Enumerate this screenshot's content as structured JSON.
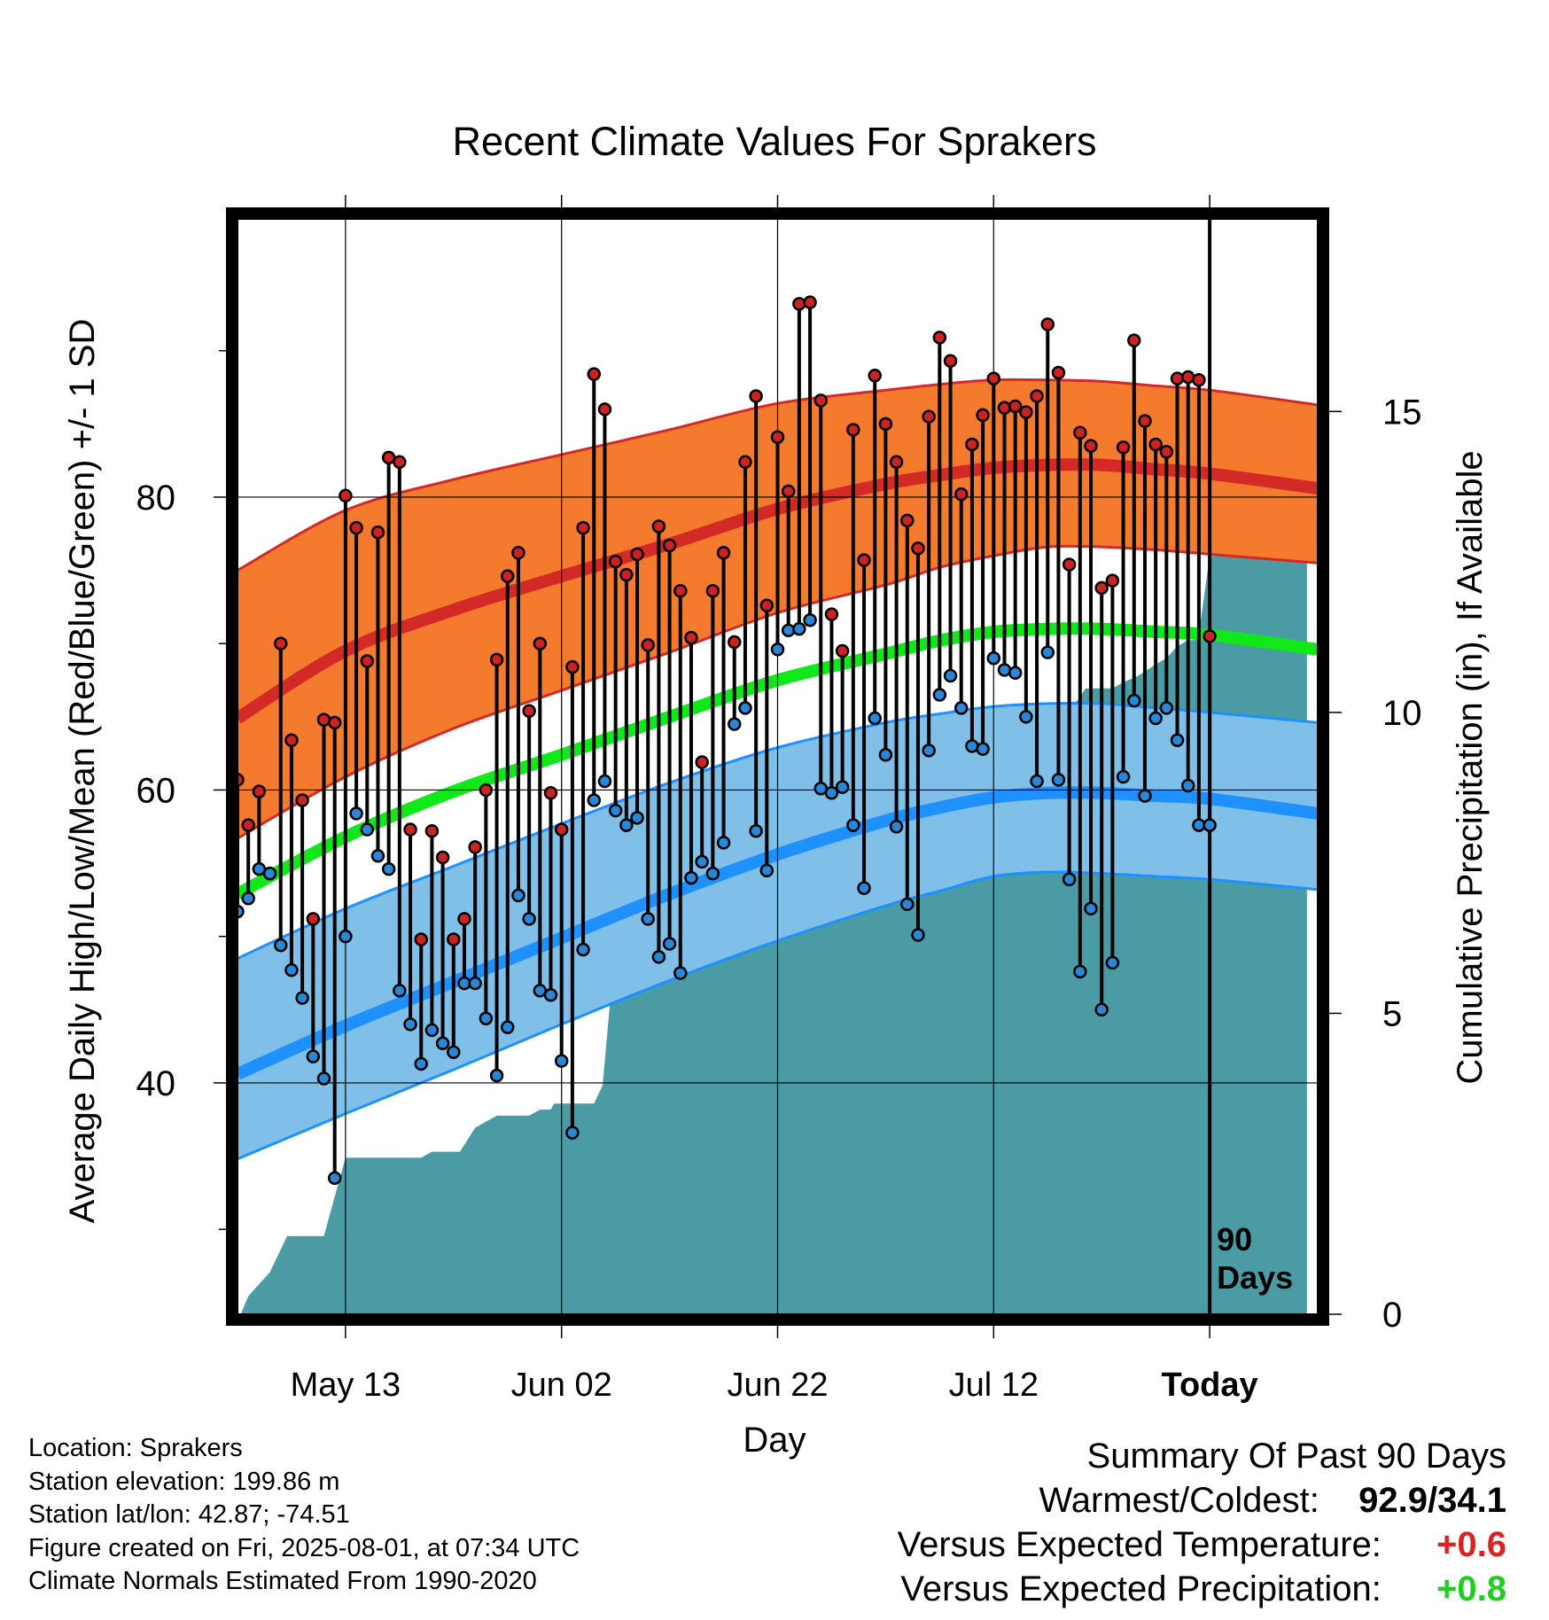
{
  "colors": {
    "high_band": "#f47a2e",
    "high_line": "#d42a27",
    "low_band": "#7fbfe8",
    "low_line": "#1e90ff",
    "mean_line": "#11e81a",
    "precip_fill": "#4a9ba3",
    "high_point": "#cc2222",
    "low_point": "#2a86d6",
    "positive_temp": "#dd2222",
    "positive_precip": "#22cc22"
  },
  "chart_data": {
    "type": "line",
    "title": "Recent Climate Values For Sprakers",
    "xlabel": "Day",
    "ylabel": "Average Daily High/Low/Mean (Red/Blue/Green) +/- 1 SD",
    "y2label": "Cumulative Precipitation (in), If Available",
    "xlim": [
      0,
      100
    ],
    "ylim": [
      24.2,
      99.0
    ],
    "y2lim": [
      0,
      18.2
    ],
    "xticks": [
      {
        "x": 10,
        "label": "May 13"
      },
      {
        "x": 30,
        "label": "Jun 02"
      },
      {
        "x": 50,
        "label": "Jun 22"
      },
      {
        "x": 70,
        "label": "Jul 12"
      },
      {
        "x": 90,
        "label": "Today"
      }
    ],
    "yticks": [
      40,
      60,
      80
    ],
    "yticks_minor": [
      30,
      50,
      70,
      90
    ],
    "y2ticks": [
      0,
      5,
      10,
      15
    ],
    "grid": true,
    "today_marker": {
      "x": 90,
      "label_line1": "90",
      "label_line2": "Days"
    },
    "normal_x": [
      0,
      10,
      20,
      30,
      40,
      50,
      60,
      65,
      70,
      75,
      80,
      85,
      90,
      100
    ],
    "normal_high": [
      64.9,
      69.5,
      72.3,
      74.6,
      76.8,
      79.2,
      80.9,
      81.5,
      82.0,
      82.2,
      82.2,
      81.9,
      81.6,
      80.6
    ],
    "normal_high_sd_upper": [
      75.0,
      79.1,
      81.2,
      82.9,
      84.6,
      86.4,
      87.3,
      87.7,
      88.0,
      88.0,
      87.9,
      87.6,
      87.3,
      86.3
    ],
    "normal_high_sd_lower": [
      56.7,
      60.9,
      64.2,
      66.8,
      69.4,
      72.1,
      74.0,
      75.2,
      76.0,
      76.6,
      76.6,
      76.4,
      76.1,
      75.5
    ],
    "normal_mean": [
      52.9,
      56.8,
      59.9,
      62.4,
      65.0,
      67.5,
      69.3,
      70.2,
      70.8,
      71.0,
      71.0,
      70.8,
      70.6,
      69.6
    ],
    "normal_low": [
      40.6,
      43.9,
      46.9,
      49.9,
      52.9,
      55.6,
      57.9,
      58.8,
      59.5,
      59.8,
      59.8,
      59.6,
      59.4,
      58.4
    ],
    "normal_low_sd_upper": [
      48.5,
      51.9,
      54.8,
      57.7,
      60.5,
      62.9,
      64.6,
      65.2,
      65.7,
      65.9,
      65.9,
      65.6,
      65.3,
      64.6
    ],
    "normal_low_sd_lower": [
      34.8,
      37.9,
      40.9,
      44.0,
      47.0,
      49.7,
      52.1,
      53.1,
      54.1,
      54.4,
      54.3,
      54.1,
      53.9,
      53.2
    ],
    "daily_x": [
      0,
      1,
      2,
      3,
      4,
      5,
      6,
      7,
      8,
      9,
      10,
      11,
      12,
      13,
      14,
      15,
      16,
      17,
      18,
      19,
      20,
      21,
      22,
      23,
      24,
      25,
      26,
      27,
      28,
      29,
      30,
      31,
      32,
      33,
      34,
      35,
      36,
      37,
      38,
      39,
      40,
      41,
      42,
      43,
      44,
      45,
      46,
      47,
      48,
      49,
      50,
      51,
      52,
      53,
      54,
      55,
      56,
      57,
      58,
      59,
      60,
      61,
      62,
      63,
      64,
      65,
      66,
      67,
      68,
      69,
      70,
      71,
      72,
      73,
      74,
      75,
      76,
      77,
      78,
      79,
      80,
      81,
      82,
      83,
      84,
      85,
      86,
      87,
      88,
      89,
      90
    ],
    "daily_high": [
      60.7,
      57.6,
      59.9,
      54.3,
      70.0,
      63.4,
      59.3,
      51.2,
      64.8,
      64.6,
      80.1,
      77.9,
      68.8,
      77.6,
      82.7,
      82.4,
      57.3,
      49.8,
      57.2,
      55.4,
      49.8,
      51.2,
      56.1,
      60.0,
      68.9,
      74.6,
      76.2,
      65.4,
      70.0,
      59.8,
      57.3,
      68.4,
      77.9,
      88.4,
      86.0,
      75.6,
      74.7,
      76.1,
      69.9,
      78.0,
      76.7,
      73.6,
      70.4,
      61.9,
      73.6,
      76.2,
      70.1,
      82.4,
      86.9,
      72.6,
      84.1,
      80.4,
      93.2,
      93.3,
      86.6,
      72.0,
      69.5,
      84.6,
      75.7,
      88.3,
      85.0,
      82.4,
      78.4,
      76.5,
      85.5,
      90.9,
      89.3,
      80.2,
      83.6,
      85.6,
      88.1,
      86.1,
      86.2,
      85.8,
      86.9,
      91.8,
      88.5,
      75.4,
      84.4,
      83.5,
      73.8,
      74.3,
      83.4,
      90.7,
      85.2,
      83.6,
      83.1,
      88.1,
      88.2,
      88.0,
      70.5
    ],
    "daily_low": [
      51.7,
      52.6,
      54.6,
      54.3,
      49.4,
      47.7,
      45.8,
      41.8,
      40.3,
      33.5,
      50.0,
      58.4,
      57.3,
      55.5,
      54.6,
      46.3,
      44.0,
      41.3,
      43.6,
      42.7,
      42.1,
      46.8,
      46.8,
      44.4,
      40.5,
      43.8,
      52.8,
      51.2,
      46.3,
      46.0,
      41.5,
      36.6,
      49.1,
      59.3,
      60.6,
      58.6,
      57.6,
      58.1,
      51.2,
      48.6,
      49.5,
      47.5,
      54.0,
      55.1,
      54.3,
      56.4,
      64.5,
      65.6,
      57.2,
      54.5,
      69.6,
      70.9,
      71.0,
      71.6,
      60.1,
      59.8,
      60.2,
      57.6,
      53.3,
      64.9,
      62.4,
      57.5,
      52.2,
      50.1,
      62.7,
      66.5,
      67.8,
      65.6,
      63.0,
      62.8,
      69.0,
      68.2,
      68.0,
      65.0,
      60.6,
      69.4,
      60.7,
      53.9,
      47.6,
      51.9,
      45.0,
      48.2,
      60.9,
      66.1,
      59.6,
      64.9,
      65.6,
      63.4,
      60.3,
      57.6,
      57.6
    ],
    "precip_x": [
      0.3,
      1.0,
      2.0,
      3.0,
      4.6,
      5.4,
      7.0,
      8.0,
      10.0,
      12.0,
      13.0,
      15.0,
      17.0,
      18.0,
      19.8,
      20.6,
      22.0,
      24.0,
      26.0,
      27.0,
      28.0,
      29.0,
      29.3,
      31.0,
      32.0,
      33.0,
      33.8,
      34.7,
      36.0,
      38.0,
      40.0,
      41.0,
      42.0,
      45.0,
      46.0,
      48.0,
      49.0,
      51.0,
      53.0,
      53.8,
      55.0,
      58.0,
      59.0,
      60.2,
      61.0,
      62.0,
      66.0,
      68.0,
      69.0,
      69.9,
      71.0,
      74.0,
      75.0,
      76.0,
      77.8,
      78.5,
      81.0,
      82.0,
      83.3,
      84.2,
      85.0,
      86.0,
      87.0,
      88.0,
      88.6,
      89.0,
      90.0,
      99.0
    ],
    "precip_y": [
      0.0,
      0.3,
      0.5,
      0.7,
      1.3,
      1.3,
      1.3,
      1.3,
      2.6,
      2.6,
      2.6,
      2.6,
      2.6,
      2.7,
      2.7,
      2.7,
      3.1,
      3.3,
      3.3,
      3.3,
      3.4,
      3.4,
      3.5,
      3.5,
      3.5,
      3.5,
      3.8,
      5.6,
      6.2,
      7.0,
      7.3,
      7.3,
      7.5,
      8.0,
      8.0,
      8.3,
      8.5,
      8.5,
      8.8,
      8.8,
      9.0,
      9.0,
      9.2,
      9.3,
      9.3,
      9.3,
      9.5,
      9.5,
      9.6,
      9.8,
      9.8,
      9.9,
      10.0,
      10.0,
      10.2,
      10.4,
      10.4,
      10.5,
      10.6,
      10.7,
      10.8,
      10.9,
      11.1,
      11.2,
      11.2,
      11.3,
      12.6,
      12.6
    ]
  },
  "info": {
    "location": "Location: Sprakers",
    "elevation": "Station elevation: 199.86 m",
    "latlon": "Station lat/lon: 42.87; -74.51",
    "created": "Figure created on Fri, 2025-08-01, at 07:34 UTC",
    "normals": "Climate Normals Estimated From 1990-2020"
  },
  "summary": {
    "heading": "Summary Of Past 90 Days",
    "warm_cold_label": "Warmest/Coldest:",
    "warm_cold_value": "92.9/34.1",
    "temp_label": "Versus Expected Temperature:",
    "temp_value": "+0.6",
    "precip_label": "Versus Expected Precipitation:",
    "precip_value": "+0.8"
  }
}
